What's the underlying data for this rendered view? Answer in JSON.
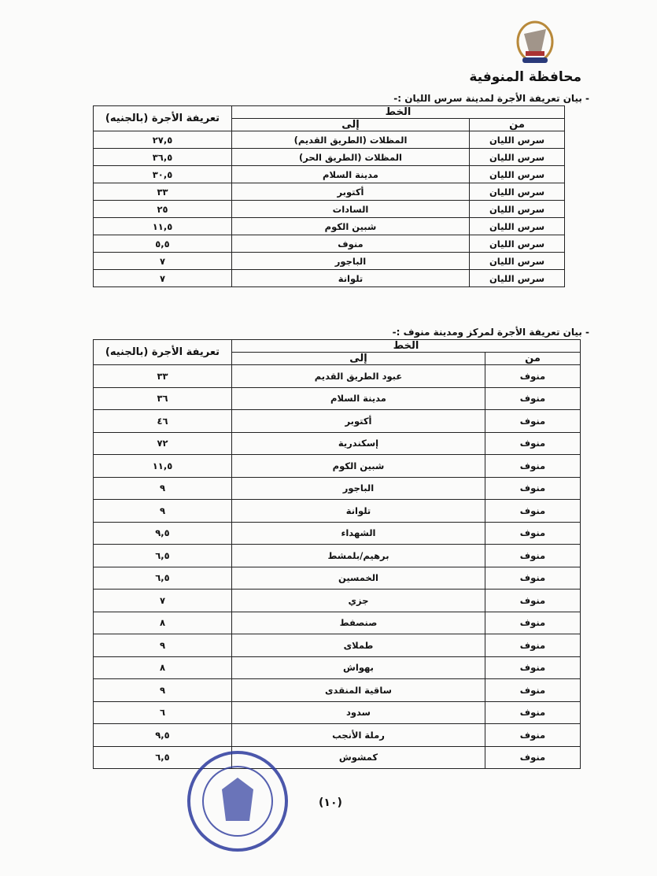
{
  "header": {
    "logo": "governorate-emblem",
    "governorate": "محافظة المنوفية"
  },
  "table1": {
    "caption": "- بيان تعريفة الأجرة لمدينة سرس الليان :-",
    "headers": {
      "line": "الخط",
      "to": "إلى",
      "from": "من",
      "fare": "تعريفة الأجرة (بالجنيه)"
    },
    "rows": [
      {
        "from": "سرس الليان",
        "to": "المظلات (الطريق القديم)",
        "fare": "٢٧,٥"
      },
      {
        "from": "سرس الليان",
        "to": "المظلات (الطريق الحر)",
        "fare": "٣٦,٥"
      },
      {
        "from": "سرس الليان",
        "to": "مدينة السلام",
        "fare": "٣٠,٥"
      },
      {
        "from": "سرس الليان",
        "to": "أكتوبر",
        "fare": "٣٣"
      },
      {
        "from": "سرس الليان",
        "to": "السادات",
        "fare": "٢٥"
      },
      {
        "from": "سرس الليان",
        "to": "شبين الكوم",
        "fare": "١١,٥"
      },
      {
        "from": "سرس الليان",
        "to": "منوف",
        "fare": "٥,٥"
      },
      {
        "from": "سرس الليان",
        "to": "الباجور",
        "fare": "٧"
      },
      {
        "from": "سرس الليان",
        "to": "تلوانة",
        "fare": "٧"
      }
    ]
  },
  "table2": {
    "caption": "- بيان تعريفة الأجرة لمركز ومدينة منوف :-",
    "headers": {
      "line": "الخط",
      "to": "إلى",
      "from": "من",
      "fare": "تعريفة الأجرة (بالجنيه)"
    },
    "rows": [
      {
        "from": "منوف",
        "to": "عبود الطريق القديم",
        "fare": "٣٣"
      },
      {
        "from": "منوف",
        "to": "مدينة السلام",
        "fare": "٣٦"
      },
      {
        "from": "منوف",
        "to": "أكتوبر",
        "fare": "٤٦"
      },
      {
        "from": "منوف",
        "to": "إسكندرية",
        "fare": "٧٢"
      },
      {
        "from": "منوف",
        "to": "شبين الكوم",
        "fare": "١١,٥"
      },
      {
        "from": "منوف",
        "to": "الباجور",
        "fare": "٩"
      },
      {
        "from": "منوف",
        "to": "تلوانة",
        "fare": "٩"
      },
      {
        "from": "منوف",
        "to": "الشهداء",
        "fare": "٩,٥"
      },
      {
        "from": "منوف",
        "to": "برهيم/بلمشط",
        "fare": "٦,٥"
      },
      {
        "from": "منوف",
        "to": "الخمسين",
        "fare": "٦,٥"
      },
      {
        "from": "منوف",
        "to": "جزي",
        "fare": "٧"
      },
      {
        "from": "منوف",
        "to": "صنصفط",
        "fare": "٨"
      },
      {
        "from": "منوف",
        "to": "طملاى",
        "fare": "٩"
      },
      {
        "from": "منوف",
        "to": "بهواش",
        "fare": "٨"
      },
      {
        "from": "منوف",
        "to": "ساقية المنقدى",
        "fare": "٩"
      },
      {
        "from": "منوف",
        "to": "سدود",
        "fare": "٦"
      },
      {
        "from": "منوف",
        "to": "رملة الأنجب",
        "fare": "٩,٥"
      },
      {
        "from": "منوف",
        "to": "كمشوش",
        "fare": "٦,٥"
      }
    ]
  },
  "footer": {
    "page_number": "(١٠)",
    "stamp": "official-stamp",
    "stamp_color": "#2c3a9c"
  }
}
